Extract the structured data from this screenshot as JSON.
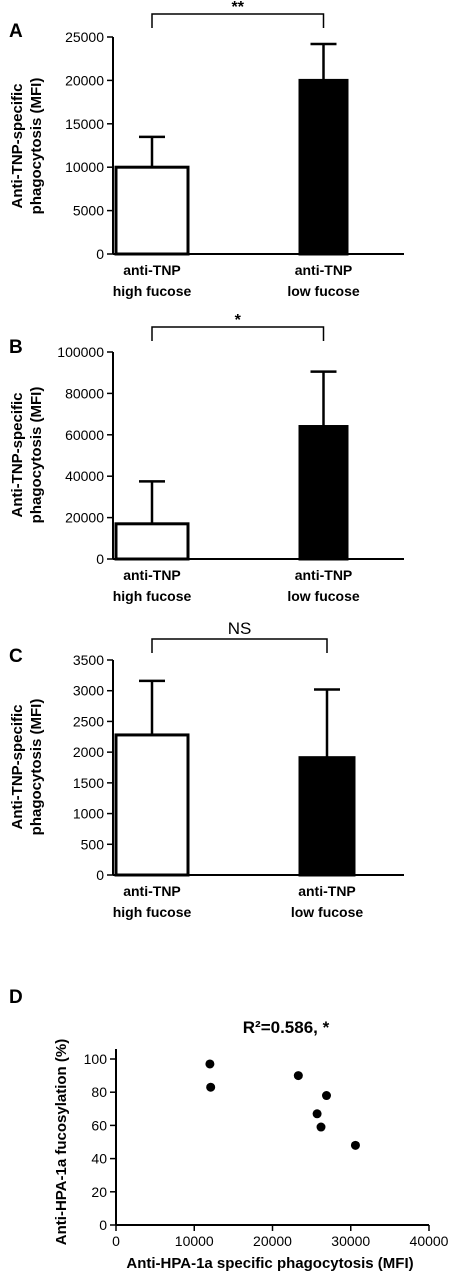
{
  "chart_data": [
    {
      "type": "bar",
      "panel": "A",
      "ylabel_lines": [
        "Anti-TNP-specific",
        "phagocytosis (MFI)"
      ],
      "categories": [
        [
          "anti-TNP",
          "high fucose"
        ],
        [
          "anti-TNP",
          "low fucose"
        ]
      ],
      "values": [
        10000,
        20000
      ],
      "errors": [
        3500,
        4200
      ],
      "bar_colors": [
        "#ffffff",
        "#000000"
      ],
      "ylim": [
        0,
        25000
      ],
      "yticks": [
        0,
        5000,
        10000,
        15000,
        20000,
        25000
      ],
      "significance": "**"
    },
    {
      "type": "bar",
      "panel": "B",
      "ylabel_lines": [
        "Anti-TNP-specific",
        "phagocytosis (MFI)"
      ],
      "categories": [
        [
          "anti-TNP",
          "high fucose"
        ],
        [
          "anti-TNP",
          "low fucose"
        ]
      ],
      "values": [
        17000,
        64000
      ],
      "errors": [
        20500,
        26500
      ],
      "bar_colors": [
        "#ffffff",
        "#000000"
      ],
      "ylim": [
        0,
        100000
      ],
      "yticks": [
        0,
        20000,
        40000,
        60000,
        80000,
        100000
      ],
      "significance": "*"
    },
    {
      "type": "bar",
      "panel": "C",
      "ylabel_lines": [
        "Anti-TNP-specific",
        "phagocytosis (MFI)"
      ],
      "categories": [
        [
          "anti-TNP",
          "high fucose"
        ],
        [
          "anti-TNP",
          "low fucose"
        ]
      ],
      "values": [
        2280,
        1910
      ],
      "errors": [
        880,
        1110
      ],
      "bar_colors": [
        "#ffffff",
        "#000000"
      ],
      "ylim": [
        0,
        3500
      ],
      "yticks": [
        0,
        500,
        1000,
        1500,
        2000,
        2500,
        3000,
        3500
      ],
      "significance": "NS"
    },
    {
      "type": "scatter",
      "panel": "D",
      "xlabel": "Anti-HPA-1a specific phagocytosis (MFI)",
      "ylabel": "Anti-HPA-1a fucosylation (%)",
      "annotation": "R²=0.586, *",
      "points": [
        {
          "x": 12000,
          "y": 97
        },
        {
          "x": 12100,
          "y": 83
        },
        {
          "x": 23300,
          "y": 90
        },
        {
          "x": 25700,
          "y": 67
        },
        {
          "x": 26200,
          "y": 59
        },
        {
          "x": 26900,
          "y": 78
        },
        {
          "x": 30600,
          "y": 48
        }
      ],
      "xlim": [
        0,
        40000
      ],
      "xticks": [
        0,
        10000,
        20000,
        30000,
        40000
      ],
      "ylim": [
        0,
        100
      ],
      "yticks": [
        0,
        20,
        40,
        60,
        80,
        100
      ]
    }
  ]
}
